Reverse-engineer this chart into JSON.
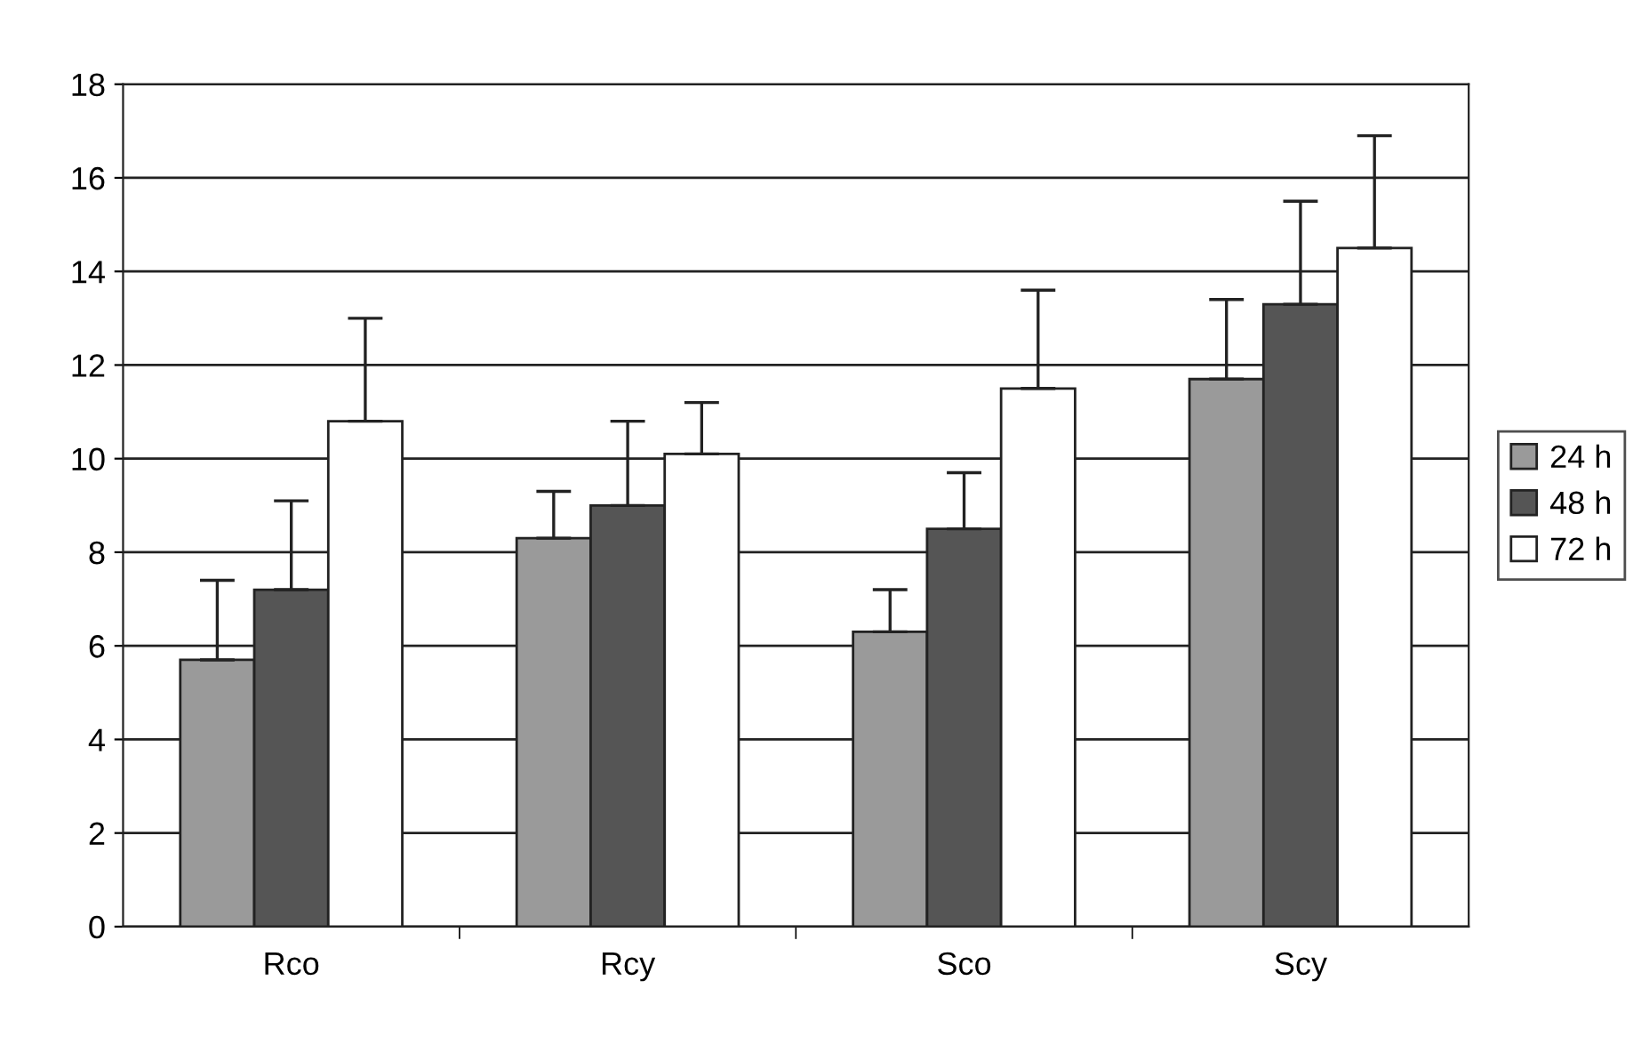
{
  "chart_data": {
    "type": "bar",
    "categories": [
      "Rco",
      "Rcy",
      "Sco",
      "Scy"
    ],
    "series": [
      {
        "name": "24 h",
        "color": "#9a9a9a",
        "values": [
          5.7,
          8.3,
          6.3,
          11.7
        ],
        "errors": [
          1.7,
          1.0,
          0.9,
          1.7
        ]
      },
      {
        "name": "48 h",
        "color": "#555555",
        "values": [
          7.2,
          9.0,
          8.5,
          13.3
        ],
        "errors": [
          1.9,
          1.8,
          1.2,
          2.2
        ]
      },
      {
        "name": "72 h",
        "color": "#ffffff",
        "values": [
          10.8,
          10.1,
          11.5,
          14.5
        ],
        "errors": [
          2.2,
          1.1,
          2.1,
          2.4
        ]
      }
    ],
    "ylim": [
      0,
      18
    ],
    "yticks": [
      0,
      2,
      4,
      6,
      8,
      10,
      12,
      14,
      16,
      18
    ],
    "grid": "y",
    "legend": "right"
  }
}
